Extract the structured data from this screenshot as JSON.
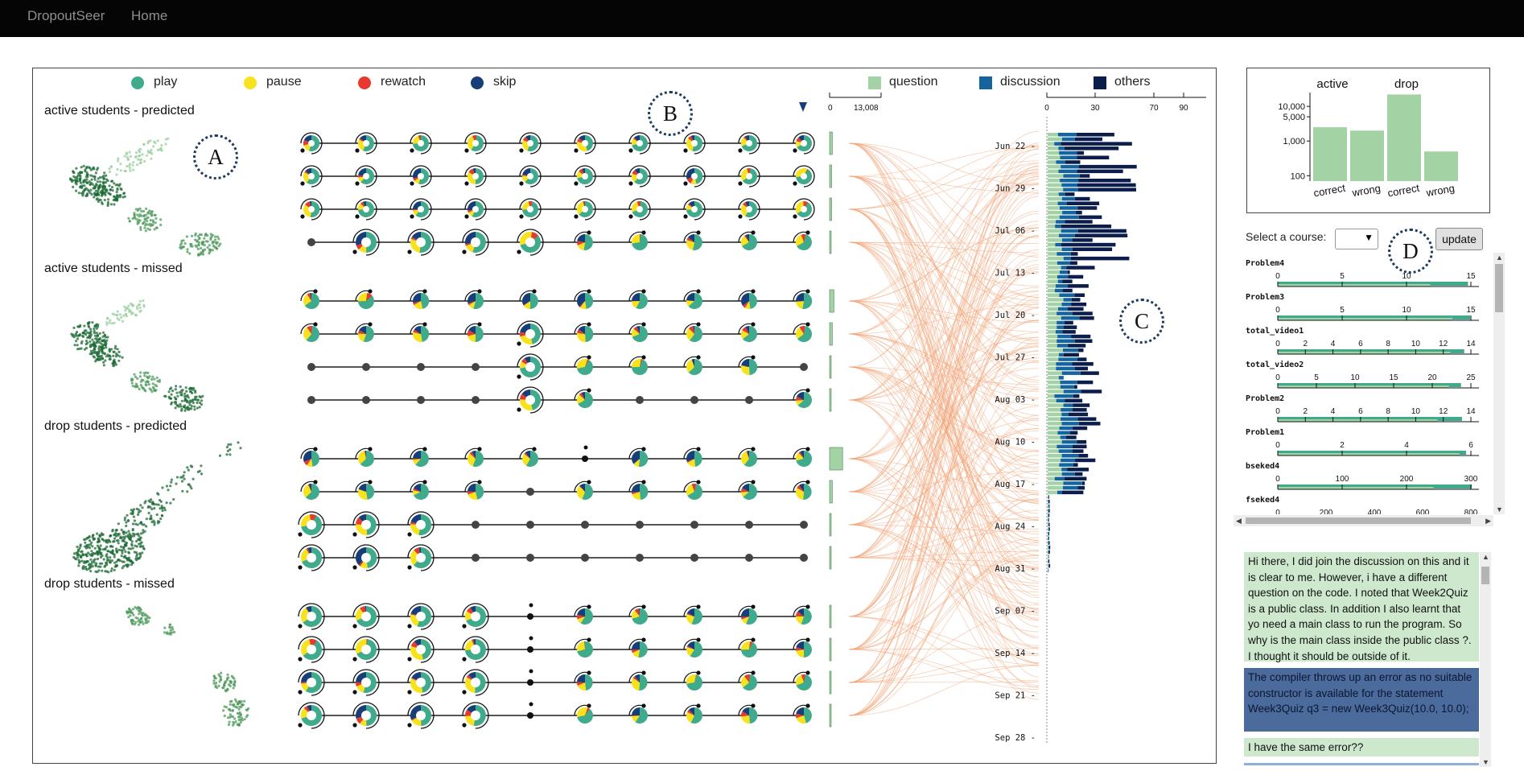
{
  "navbar": {
    "brand": "DropoutSeer",
    "home": "Home"
  },
  "legend": {
    "actions": [
      {
        "label": "play",
        "color": "#3fab8c"
      },
      {
        "label": "pause",
        "color": "#f7e21b"
      },
      {
        "label": "rewatch",
        "color": "#e8392f"
      },
      {
        "label": "skip",
        "color": "#173e79"
      }
    ],
    "posts": [
      {
        "label": "question",
        "color": "#a3d3a5"
      },
      {
        "label": "discussion",
        "color": "#14659f"
      },
      {
        "label": "others",
        "color": "#0b1e4b"
      }
    ]
  },
  "groups": [
    {
      "label": "active students - predicted"
    },
    {
      "label": "active students - missed"
    },
    {
      "label": "drop students - predicted"
    },
    {
      "label": "drop students - missed"
    }
  ],
  "callouts": {
    "a": "A",
    "b": "B",
    "c": "C",
    "d": "D"
  },
  "cluster_axis": {
    "ticks": [
      "0",
      "13,008"
    ],
    "max": 13008,
    "bar_values": [
      700,
      500,
      500,
      150,
      1100,
      700,
      100,
      100,
      3300,
      700,
      150,
      150,
      300,
      300,
      300,
      300
    ]
  },
  "timeline": {
    "axis_ticks": [
      "0",
      "30",
      "70",
      "90"
    ],
    "dates": [
      "Jun 22",
      "Jun 29",
      "Jul 06",
      "Jul 13",
      "Jul 20",
      "Jul 27",
      "Aug 03",
      "Aug 10",
      "Aug 17",
      "Aug 24",
      "Aug 31",
      "Sep 07",
      "Sep 14",
      "Sep 21",
      "Sep 28"
    ]
  },
  "chart_data": {
    "type": "bar",
    "title": "",
    "group_labels": [
      "active",
      "drop"
    ],
    "categories": [
      "correct",
      "wrong",
      "correct",
      "wrong"
    ],
    "values": [
      2500,
      2000,
      22000,
      500
    ],
    "colors": [
      "#a3d3a5",
      "#a3d3a5",
      "#a3d3a5",
      "#a3d3a5"
    ],
    "yscale": "log",
    "yticks": [
      "100",
      "1,000",
      "5,000",
      "10,000"
    ],
    "ylim": [
      70,
      25000
    ]
  },
  "course_select": {
    "label": "Select a course:",
    "value": "",
    "update_label": "update"
  },
  "features": [
    {
      "name": "Problem4",
      "ticks": [
        "0",
        "5",
        "10",
        "15"
      ]
    },
    {
      "name": "Problem3",
      "ticks": [
        "0",
        "5",
        "10",
        "15"
      ]
    },
    {
      "name": "total_video1",
      "ticks": [
        "0",
        "2",
        "4",
        "6",
        "8",
        "10",
        "12",
        "14"
      ]
    },
    {
      "name": "total_video2",
      "ticks": [
        "0",
        "5",
        "10",
        "15",
        "20",
        "25"
      ]
    },
    {
      "name": "Problem2",
      "ticks": [
        "0",
        "2",
        "4",
        "6",
        "8",
        "10",
        "12",
        "14"
      ]
    },
    {
      "name": "Problem1",
      "ticks": [
        "0",
        "2",
        "4",
        "6"
      ]
    },
    {
      "name": "bseked4",
      "ticks": [
        "0",
        "100",
        "200",
        "300"
      ]
    },
    {
      "name": "fseked4",
      "ticks": [
        "0",
        "200",
        "400",
        "600",
        "800"
      ]
    }
  ],
  "posts": [
    {
      "text": "Hi there, I did join the discussion on this and it is clear to me. However, i have a different question on the code. I noted that Week2Quiz is a public class. In addition I also learnt that yo need a main class to run the program. So why is the main class inside the public class ?. I thought it should be outside of it.",
      "type": "question",
      "color": "#cde8cc",
      "textcolor": "#111111"
    },
    {
      "text": "The compiler throws up an error as no suitable constructor is available for the statement Week3Quiz q3 = new Week3Quiz(10.0, 10.0);",
      "type": "discussion",
      "color": "#4a6b9b",
      "textcolor": "#0c1630"
    },
    {
      "text": "I have the same error??",
      "type": "question",
      "color": "#cde8cc",
      "textcolor": "#111111"
    }
  ]
}
